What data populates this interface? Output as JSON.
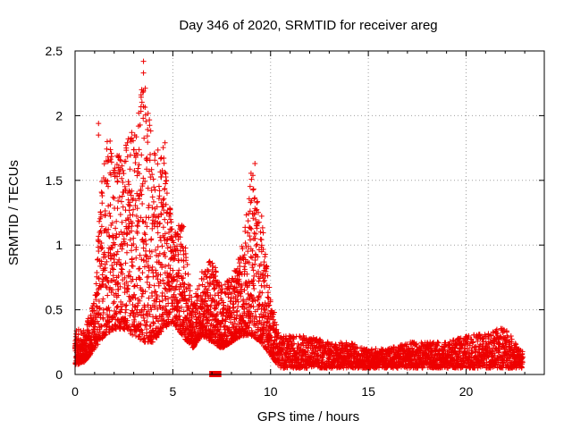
{
  "chart_data": {
    "type": "scatter",
    "title": "Day 346 of 2020, SRMTID for receiver areg",
    "xlabel": "GPS time / hours",
    "ylabel": "SRMTID / TECUs",
    "xlim": [
      0,
      24
    ],
    "ylim": [
      0,
      2.5
    ],
    "x_ticks": [
      0,
      5,
      10,
      15,
      20
    ],
    "x_tick_labels": [
      "0",
      "5",
      "10",
      "15",
      "20"
    ],
    "y_ticks": [
      0,
      0.5,
      1,
      1.5,
      2,
      2.5
    ],
    "y_tick_labels": [
      "0",
      "0.5",
      "1",
      "1.5",
      "2",
      "2.5"
    ],
    "grid": true,
    "marker": "+",
    "color": "#ee0000",
    "series": [
      {
        "name": "SRMTID",
        "envelope_x": [
          0,
          0.5,
          1,
          1.5,
          2,
          2.5,
          3,
          3.5,
          4,
          4.5,
          5,
          5.5,
          6,
          6.5,
          7,
          7.5,
          8,
          8.5,
          9,
          9.5,
          10,
          10.5,
          11,
          12,
          13,
          14,
          15,
          16,
          17,
          18,
          19,
          20,
          21,
          22,
          22.5,
          22.9
        ],
        "envelope_low": [
          0.07,
          0.1,
          0.2,
          0.3,
          0.35,
          0.35,
          0.3,
          0.25,
          0.25,
          0.35,
          0.4,
          0.3,
          0.2,
          0.3,
          0.25,
          0.2,
          0.25,
          0.3,
          0.3,
          0.25,
          0.15,
          0.05,
          0.05,
          0.05,
          0.05,
          0.05,
          0.05,
          0.05,
          0.05,
          0.05,
          0.05,
          0.05,
          0.05,
          0.05,
          0.05,
          0.05
        ],
        "envelope_high": [
          0.35,
          0.35,
          0.6,
          1.9,
          1.75,
          1.8,
          1.85,
          2.4,
          1.75,
          1.8,
          1.1,
          1.2,
          0.55,
          0.8,
          0.9,
          0.7,
          0.75,
          0.95,
          1.6,
          1.3,
          0.6,
          0.3,
          0.3,
          0.3,
          0.25,
          0.25,
          0.2,
          0.2,
          0.25,
          0.25,
          0.25,
          0.3,
          0.32,
          0.37,
          0.25,
          0.18
        ],
        "highlighted_points": [
          {
            "x": 3.5,
            "y": 2.42
          },
          {
            "x": 3.5,
            "y": 2.33
          },
          {
            "x": 3.5,
            "y": 2.19
          },
          {
            "x": 3.5,
            "y": 2.07
          },
          {
            "x": 1.2,
            "y": 1.94
          },
          {
            "x": 1.2,
            "y": 1.85
          },
          {
            "x": 2.9,
            "y": 1.87
          },
          {
            "x": 9.2,
            "y": 1.63
          },
          {
            "x": 4.6,
            "y": 1.79
          },
          {
            "x": 7.0,
            "y": 0.0
          },
          {
            "x": 7.3,
            "y": 0.0
          }
        ]
      }
    ]
  }
}
